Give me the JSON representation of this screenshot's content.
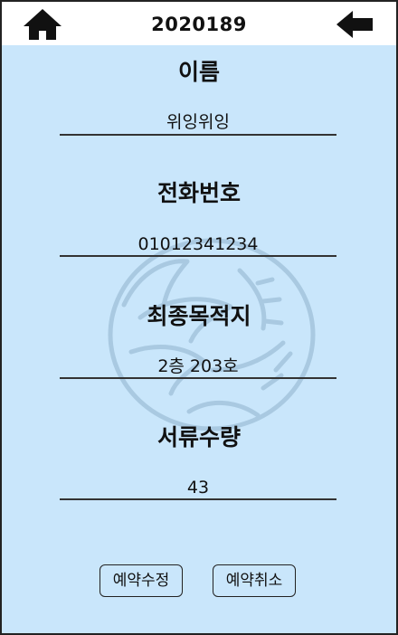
{
  "header": {
    "title": "2020189",
    "home_icon": "home-icon",
    "back_icon": "back-arrow-icon"
  },
  "fields": [
    {
      "label": "이름",
      "value": "위잉위잉"
    },
    {
      "label": "전화번호",
      "value": "01012341234"
    },
    {
      "label": "최종목적지",
      "value": "2층 203호"
    },
    {
      "label": "서류수량",
      "value": "43"
    }
  ],
  "actions": {
    "edit_label": "예약수정",
    "cancel_label": "예약취소"
  },
  "colors": {
    "background": "#c9e6fb",
    "header": "#ffffff",
    "text": "#111111",
    "watermark": "#8fb3cc"
  }
}
